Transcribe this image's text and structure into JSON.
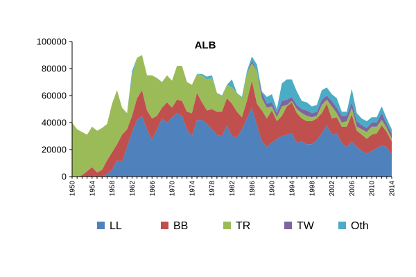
{
  "chart_data": {
    "type": "area",
    "stacked": true,
    "title": "ALB",
    "xlabel": "",
    "ylabel": "",
    "ylim": [
      0,
      100000
    ],
    "yticks": [
      0,
      20000,
      40000,
      60000,
      80000,
      100000
    ],
    "xtick_labels": [
      "1950",
      "1954",
      "1958",
      "1962",
      "1966",
      "1970",
      "1974",
      "1978",
      "1982",
      "1986",
      "1990",
      "1994",
      "1998",
      "2002",
      "2006",
      "2010",
      "2014"
    ],
    "grid": false,
    "legend_position": "bottom",
    "x": [
      1950,
      1951,
      1952,
      1953,
      1954,
      1955,
      1956,
      1957,
      1958,
      1959,
      1960,
      1961,
      1962,
      1963,
      1964,
      1965,
      1966,
      1967,
      1968,
      1969,
      1970,
      1971,
      1972,
      1973,
      1974,
      1975,
      1976,
      1977,
      1978,
      1979,
      1980,
      1981,
      1982,
      1983,
      1984,
      1985,
      1986,
      1987,
      1988,
      1989,
      1990,
      1991,
      1992,
      1993,
      1994,
      1995,
      1996,
      1997,
      1998,
      1999,
      2000,
      2001,
      2002,
      2003,
      2004,
      2005,
      2006,
      2007,
      2008,
      2009,
      2010,
      2011,
      2012,
      2013,
      2014
    ],
    "series": [
      {
        "name": "LL",
        "color": "#4F81BD",
        "values": [
          0,
          0,
          0,
          0,
          0,
          0,
          0,
          2000,
          5000,
          12000,
          11000,
          22000,
          33000,
          42000,
          45000,
          35000,
          27000,
          35000,
          43000,
          40000,
          44000,
          47000,
          45000,
          35000,
          30000,
          42000,
          42000,
          39000,
          35000,
          31000,
          30000,
          38000,
          30000,
          29000,
          35000,
          43000,
          51000,
          38000,
          26000,
          22000,
          25000,
          28000,
          30000,
          31000,
          32000,
          25000,
          26000,
          24000,
          24000,
          27000,
          32000,
          38000,
          31000,
          32000,
          25000,
          22000,
          26000,
          22000,
          19000,
          17000,
          19000,
          21000,
          23000,
          22000,
          16000
        ]
      },
      {
        "name": "BB",
        "color": "#C0504D",
        "values": [
          0,
          0,
          1000,
          4000,
          7000,
          3000,
          5000,
          10000,
          13000,
          12000,
          20000,
          13000,
          12000,
          16000,
          19000,
          14000,
          16000,
          10000,
          8000,
          15000,
          7000,
          10000,
          11000,
          13000,
          17000,
          20000,
          13000,
          10000,
          15000,
          17000,
          18000,
          20000,
          24000,
          19000,
          9000,
          13000,
          20000,
          16000,
          23000,
          21000,
          24000,
          13000,
          15000,
          21000,
          23000,
          22000,
          17000,
          17000,
          17000,
          16000,
          15000,
          16000,
          12000,
          12000,
          12000,
          15000,
          20000,
          12000,
          12000,
          11000,
          12000,
          11000,
          15000,
          11000,
          10000
        ]
      },
      {
        "name": "TR",
        "color": "#9BBB59",
        "values": [
          40000,
          35000,
          32000,
          27000,
          30000,
          31000,
          31000,
          27000,
          36000,
          40000,
          20000,
          12000,
          30000,
          30000,
          26000,
          26000,
          32000,
          28000,
          19000,
          20000,
          20000,
          25000,
          26000,
          22000,
          21000,
          14000,
          20000,
          23000,
          23000,
          14000,
          11000,
          10000,
          12000,
          14000,
          14000,
          20000,
          13000,
          24000,
          9000,
          8000,
          3000,
          3000,
          7000,
          1000,
          1000,
          3000,
          4000,
          4000,
          3000,
          2000,
          6000,
          3000,
          9000,
          3000,
          3000,
          4000,
          5000,
          3000,
          4000,
          5000,
          6000,
          5000,
          4000,
          3000,
          2000
        ]
      },
      {
        "name": "TW",
        "color": "#8064A2",
        "values": [
          0,
          0,
          0,
          0,
          0,
          0,
          0,
          0,
          0,
          0,
          0,
          0,
          0,
          0,
          0,
          0,
          0,
          0,
          0,
          0,
          0,
          0,
          0,
          0,
          0,
          0,
          0,
          0,
          0,
          0,
          0,
          0,
          0,
          0,
          0,
          0,
          2000,
          0,
          4000,
          3000,
          3000,
          3000,
          4000,
          4000,
          3000,
          3000,
          3000,
          4000,
          3000,
          3000,
          4000,
          3000,
          4000,
          4000,
          5000,
          4000,
          4000,
          4000,
          3000,
          3000,
          3000,
          3000,
          5000,
          3000,
          4000
        ]
      },
      {
        "name": "Oth",
        "color": "#4BACC6",
        "values": [
          0,
          0,
          0,
          0,
          0,
          0,
          0,
          0,
          0,
          0,
          0,
          0,
          3000,
          0,
          0,
          0,
          0,
          0,
          0,
          0,
          0,
          0,
          0,
          0,
          0,
          0,
          1000,
          2000,
          2000,
          0,
          1000,
          0,
          6000,
          0,
          1000,
          2000,
          3000,
          5000,
          1000,
          5000,
          6000,
          3000,
          13000,
          15000,
          13000,
          10000,
          6000,
          6000,
          5000,
          5000,
          7000,
          6000,
          5000,
          7000,
          3000,
          3000,
          10000,
          6000,
          5000,
          5000,
          4000,
          4000,
          5000,
          4000,
          3000
        ]
      }
    ]
  }
}
